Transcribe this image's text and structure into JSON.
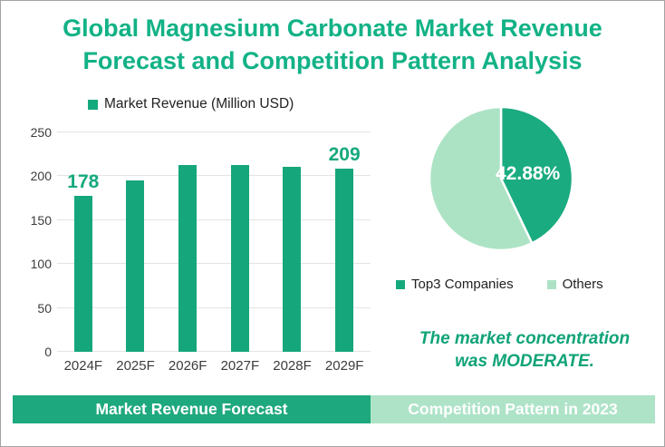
{
  "page": {
    "title": "Global Magnesium Carbonate Market Revenue Forecast and Competition Pattern Analysis"
  },
  "colors": {
    "title_green": "#12b286",
    "bar_green": "#16a67c",
    "pie_dark_green": "#1bab80",
    "pie_light_green": "#ace3c4",
    "banner_left_bg": "#1ea87d",
    "banner_right_bg": "#aee3c8",
    "gridline": "#e3e3e3",
    "value_label_green": "#16a97e",
    "note_green": "#10a378"
  },
  "bar_section": {
    "legend_label": "Market Revenue (Million USD)",
    "banner_label": "Market Revenue Forecast"
  },
  "pie_section": {
    "percent_label": "42.88%",
    "legend": [
      "Top3 Companies",
      "Others"
    ],
    "note": "The market concentration was MODERATE.",
    "banner_label": "Competition Pattern in 2023"
  },
  "chart_data": [
    {
      "type": "bar",
      "title": "Market Revenue Forecast",
      "legend": [
        "Market Revenue (Million USD)"
      ],
      "categories": [
        "2024F",
        "2025F",
        "2026F",
        "2027F",
        "2028F",
        "2029F"
      ],
      "values": [
        178,
        195,
        213,
        213,
        211,
        209
      ],
      "point_labels": [
        {
          "index": 0,
          "text": "178"
        },
        {
          "index": 5,
          "text": "209"
        }
      ],
      "xlabel": "",
      "ylabel": "",
      "ylim": [
        0,
        250
      ],
      "yticks": [
        0,
        50,
        100,
        150,
        200,
        250
      ],
      "grid": true,
      "legend_position": "top",
      "bar_color": "#16a67c"
    },
    {
      "type": "pie",
      "title": "Competition Pattern in 2023",
      "start_angle": "top",
      "direction": "clockwise",
      "slices": [
        {
          "label": "Top3 Companies",
          "value": 42.88,
          "color": "#1bab80",
          "data_label": "42.88%"
        },
        {
          "label": "Others",
          "value": 57.12,
          "color": "#ace3c4",
          "data_label": ""
        }
      ],
      "legend_position": "bottom",
      "annotation": "The market concentration was MODERATE."
    }
  ]
}
